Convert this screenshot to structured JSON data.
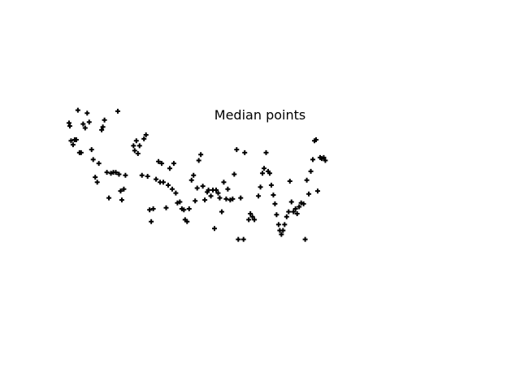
{
  "chart_data": {
    "type": "scatter",
    "title": "Median points",
    "xlabel": "",
    "ylabel": "",
    "xlim": [
      0,
      100
    ],
    "ylim": [
      0,
      30
    ],
    "grid": false,
    "axes_visible": false,
    "marker": "plus",
    "marker_color": "#000000",
    "series": [
      {
        "points": [
          [
            1.0,
            22.3
          ],
          [
            1.2,
            22.0
          ],
          [
            1.5,
            20.5
          ],
          [
            2.0,
            20.1
          ],
          [
            2.4,
            20.6
          ],
          [
            2.8,
            20.6
          ],
          [
            3.2,
            23.6
          ],
          [
            3.6,
            19.3
          ],
          [
            4.0,
            19.3
          ],
          [
            4.5,
            22.2
          ],
          [
            5.0,
            21.8
          ],
          [
            5.5,
            23.3
          ],
          [
            6.0,
            22.4
          ],
          [
            6.6,
            19.6
          ],
          [
            7.0,
            18.6
          ],
          [
            7.5,
            16.8
          ],
          [
            8.0,
            16.3
          ],
          [
            8.4,
            18.2
          ],
          [
            9.1,
            21.6
          ],
          [
            9.4,
            21.9
          ],
          [
            9.8,
            22.6
          ],
          [
            10.4,
            17.3
          ],
          [
            10.9,
            14.7
          ],
          [
            11.4,
            17.2
          ],
          [
            12.0,
            17.3
          ],
          [
            12.6,
            17.3
          ],
          [
            13.1,
            23.5
          ],
          [
            13.4,
            17.1
          ],
          [
            13.8,
            15.4
          ],
          [
            14.1,
            14.5
          ],
          [
            14.6,
            15.6
          ],
          [
            15.0,
            17.0
          ],
          [
            17.0,
            20.0
          ],
          [
            17.3,
            19.5
          ],
          [
            17.7,
            20.5
          ],
          [
            18.1,
            19.2
          ],
          [
            18.5,
            20.0
          ],
          [
            19.1,
            17.0
          ],
          [
            19.6,
            20.7
          ],
          [
            20.1,
            21.1
          ],
          [
            20.5,
            16.9
          ],
          [
            21.0,
            13.5
          ],
          [
            21.4,
            12.3
          ],
          [
            21.9,
            13.6
          ],
          [
            22.6,
            16.6
          ],
          [
            23.2,
            18.4
          ],
          [
            23.6,
            16.3
          ],
          [
            24.0,
            18.2
          ],
          [
            24.4,
            16.3
          ],
          [
            25.1,
            13.7
          ],
          [
            25.6,
            16.0
          ],
          [
            26.0,
            17.7
          ],
          [
            26.6,
            15.6
          ],
          [
            27.0,
            18.2
          ],
          [
            27.5,
            15.2
          ],
          [
            27.9,
            14.2
          ],
          [
            28.5,
            14.3
          ],
          [
            29.0,
            13.6
          ],
          [
            29.5,
            13.5
          ],
          [
            29.8,
            12.5
          ],
          [
            30.3,
            12.3
          ],
          [
            30.8,
            13.6
          ],
          [
            31.4,
            16.5
          ],
          [
            31.9,
            17.0
          ],
          [
            32.3,
            14.4
          ],
          [
            32.8,
            15.7
          ],
          [
            33.2,
            18.5
          ],
          [
            33.7,
            19.1
          ],
          [
            34.2,
            15.9
          ],
          [
            34.7,
            14.5
          ],
          [
            35.3,
            15.3
          ],
          [
            35.6,
            15.5
          ],
          [
            36.2,
            14.9
          ],
          [
            36.7,
            15.5
          ],
          [
            37.1,
            11.6
          ],
          [
            37.5,
            15.5
          ],
          [
            38.0,
            15.2
          ],
          [
            38.4,
            14.7
          ],
          [
            38.9,
            13.3
          ],
          [
            39.4,
            16.3
          ],
          [
            40.0,
            14.6
          ],
          [
            40.4,
            15.6
          ],
          [
            41.0,
            14.5
          ],
          [
            41.6,
            14.6
          ],
          [
            42.0,
            17.1
          ],
          [
            42.6,
            19.6
          ],
          [
            43.0,
            10.5
          ],
          [
            43.6,
            14.7
          ],
          [
            44.3,
            10.5
          ],
          [
            44.6,
            19.3
          ],
          [
            45.6,
            12.5
          ],
          [
            46.0,
            13.1
          ],
          [
            46.5,
            12.8
          ],
          [
            47.0,
            12.5
          ],
          [
            48.0,
            14.9
          ],
          [
            48.5,
            15.8
          ],
          [
            49.0,
            17.2
          ],
          [
            49.4,
            17.7
          ],
          [
            49.9,
            19.3
          ],
          [
            50.4,
            17.4
          ],
          [
            50.8,
            17.2
          ],
          [
            51.2,
            16.0
          ],
          [
            51.7,
            15.0
          ],
          [
            52.1,
            14.1
          ],
          [
            52.5,
            13.0
          ],
          [
            53.0,
            12.0
          ],
          [
            53.3,
            11.4
          ],
          [
            53.7,
            11.0
          ],
          [
            54.1,
            11.4
          ],
          [
            54.5,
            12.0
          ],
          [
            55.0,
            12.8
          ],
          [
            55.5,
            13.3
          ],
          [
            55.8,
            16.4
          ],
          [
            56.2,
            14.3
          ],
          [
            56.7,
            13.3
          ],
          [
            57.2,
            13.6
          ],
          [
            57.6,
            13.1
          ],
          [
            58.1,
            13.8
          ],
          [
            58.6,
            14.2
          ],
          [
            59.2,
            14.1
          ],
          [
            59.6,
            10.5
          ],
          [
            60.0,
            16.5
          ],
          [
            60.5,
            15.1
          ],
          [
            61.0,
            17.4
          ],
          [
            61.5,
            18.6
          ],
          [
            61.9,
            20.5
          ],
          [
            62.3,
            20.6
          ],
          [
            62.7,
            15.4
          ],
          [
            63.3,
            18.8
          ],
          [
            63.7,
            18.7
          ],
          [
            64.2,
            18.8
          ],
          [
            64.6,
            18.5
          ]
        ]
      }
    ]
  }
}
